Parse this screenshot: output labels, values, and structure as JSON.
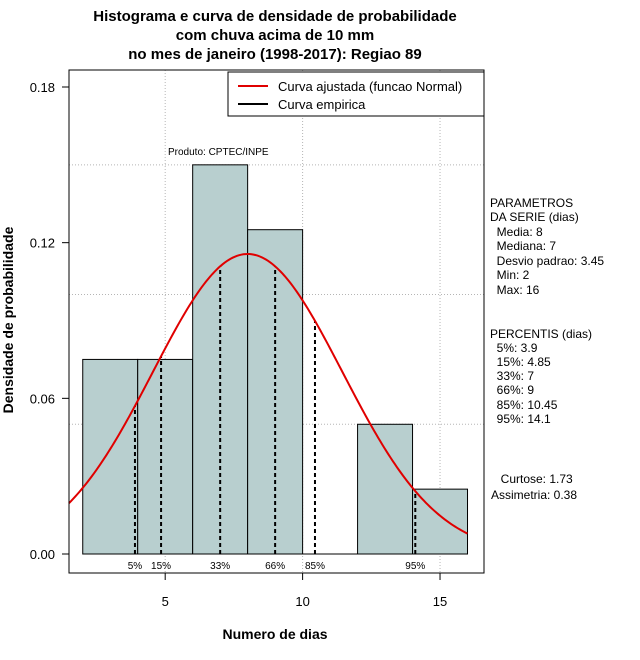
{
  "chart_data": {
    "type": "histogram",
    "title_lines": [
      "Histograma e curva de densidade de probabilidade",
      "com chuva acima de 10 mm",
      "no mes de janeiro (1998-2017): Regiao 89"
    ],
    "xlabel": "Numero de dias",
    "ylabel": "Densidade de probabilidade",
    "xlim": [
      1.5,
      16.6
    ],
    "ylim": [
      0,
      0.18
    ],
    "x_ticks": [
      5,
      10,
      15
    ],
    "y_ticks": [
      0.0,
      0.06,
      0.12,
      0.18
    ],
    "y_tick_labels": [
      "0.00",
      "0.06",
      "0.12",
      "0.18"
    ],
    "grid_x": [
      5,
      10,
      15
    ],
    "grid_y": [
      0.05,
      0.1,
      0.15
    ],
    "bins": [
      {
        "start": 2,
        "end": 4,
        "density": 0.075
      },
      {
        "start": 4,
        "end": 6,
        "density": 0.075
      },
      {
        "start": 6,
        "end": 8,
        "density": 0.15
      },
      {
        "start": 8,
        "end": 10,
        "density": 0.125
      },
      {
        "start": 10,
        "end": 12,
        "density": 0
      },
      {
        "start": 12,
        "end": 14,
        "density": 0.05
      },
      {
        "start": 14,
        "end": 16,
        "density": 0.025
      }
    ],
    "bar_color": "#b8cfcf",
    "normal_fit": {
      "mean": 8,
      "sd": 3.45,
      "color": "#e00000"
    },
    "percentiles": [
      {
        "label": "5%",
        "value": 3.9
      },
      {
        "label": "15%",
        "value": 4.85
      },
      {
        "label": "33%",
        "value": 7
      },
      {
        "label": "66%",
        "value": 9
      },
      {
        "label": "85%",
        "value": 10.45
      },
      {
        "label": "95%",
        "value": 14.1
      }
    ],
    "legend": {
      "position": "top-right",
      "entries": [
        {
          "label": "Curva ajustada (funcao Normal)",
          "color": "#e00000"
        },
        {
          "label": "Curva empirica",
          "color": "#000000"
        }
      ]
    },
    "product_label": "Produto: CPTEC/INPE"
  },
  "side_panel": {
    "params_title_1": "PARAMETROS",
    "params_title_2": "DA SERIE (dias)",
    "media": "  Media: 8",
    "mediana": "  Mediana: 7",
    "desvio": "  Desvio padrao: 3.45",
    "min": "  Min: 2",
    "max": "  Max: 16",
    "perc_title": "PERCENTIS (dias)",
    "p5": "  5%: 3.9",
    "p15": "  15%: 4.85",
    "p33": "  33%: 7",
    "p66": "  66%: 9",
    "p85": "  85%: 10.45",
    "p95": "  95%: 14.1",
    "curtose": "  Curtose: 1.73",
    "assimetria": "Assimetria: 0.38"
  }
}
